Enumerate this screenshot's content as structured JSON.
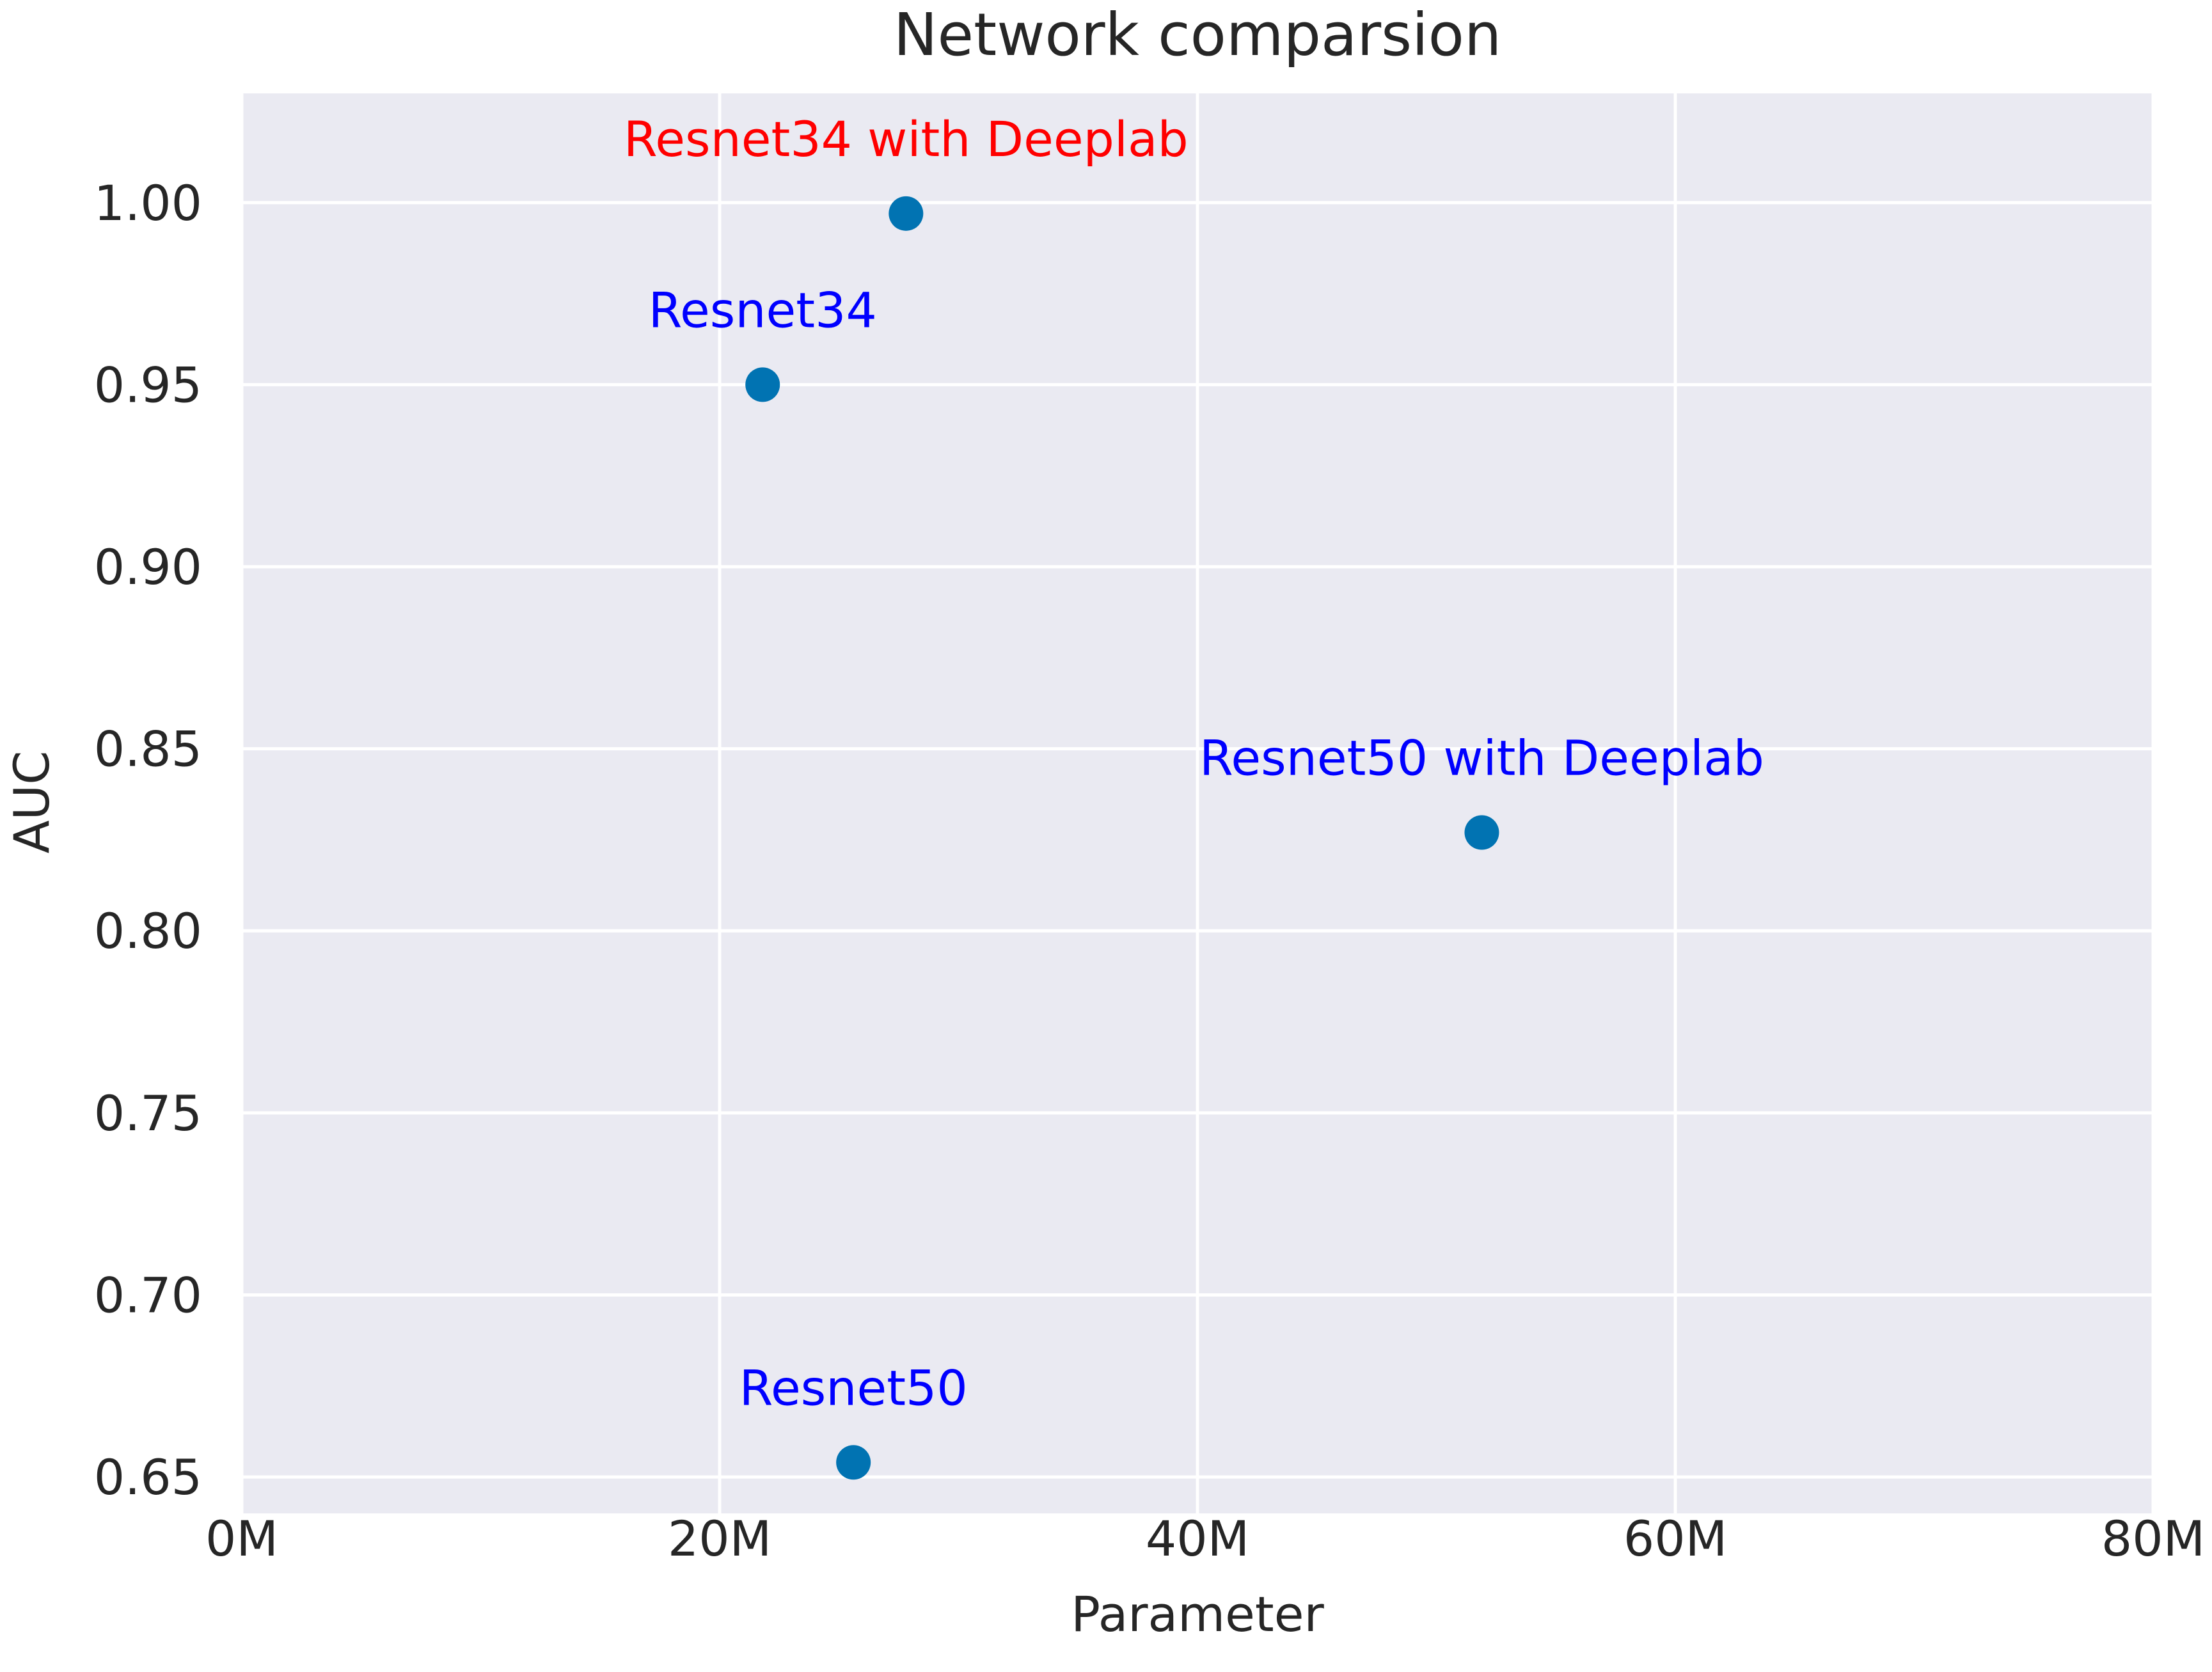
{
  "chart_data": {
    "type": "scatter",
    "title": "Network comparsion",
    "xlabel": "Parameter",
    "ylabel": "AUC",
    "xlim": [
      0,
      80
    ],
    "ylim": [
      0.64,
      1.03
    ],
    "x_ticks": [
      0,
      20,
      40,
      60,
      80
    ],
    "x_tick_labels": [
      "0M",
      "20M",
      "40M",
      "60M",
      "80M"
    ],
    "y_ticks": [
      0.65,
      0.7,
      0.75,
      0.8,
      0.85,
      0.9,
      0.95,
      1.0
    ],
    "y_tick_labels": [
      "0.65",
      "0.70",
      "0.75",
      "0.80",
      "0.85",
      "0.90",
      "0.95",
      "1.00"
    ],
    "grid": true,
    "x_unit": "M",
    "colors": {
      "background": "#eaeaf2",
      "grid": "#ffffff",
      "marker": "#0173b2",
      "label_default": "#0000ff",
      "label_highlight": "#ff0000",
      "text": "#262626"
    },
    "points": [
      {
        "label": "Resnet34 with Deeplab",
        "x": 27.8,
        "y": 0.997,
        "highlight": true
      },
      {
        "label": "Resnet34",
        "x": 21.8,
        "y": 0.95,
        "highlight": false
      },
      {
        "label": "Resnet50 with Deeplab",
        "x": 51.9,
        "y": 0.827,
        "highlight": false
      },
      {
        "label": "Resnet50",
        "x": 25.6,
        "y": 0.654,
        "highlight": false
      }
    ]
  }
}
